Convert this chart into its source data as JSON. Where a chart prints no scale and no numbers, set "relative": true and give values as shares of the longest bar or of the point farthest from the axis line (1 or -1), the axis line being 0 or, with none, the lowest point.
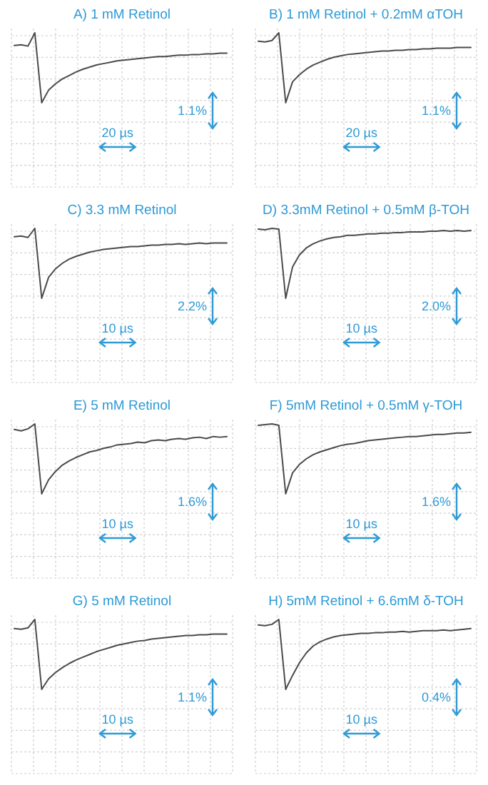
{
  "chart_data": [
    {
      "type": "line",
      "title": "A) 1 mM Retinol",
      "relative": true,
      "grid": true,
      "color": "#4a4a4a",
      "annotations": [
        "1.1%",
        "20 µs"
      ],
      "categories": [
        null,
        null,
        null,
        null,
        null,
        null,
        null,
        null,
        null,
        null,
        null,
        null,
        null,
        null,
        null,
        null,
        null,
        null,
        null,
        null,
        null,
        null,
        null,
        null,
        null,
        null,
        null,
        null,
        null,
        null,
        null,
        null
      ],
      "values": [
        0.82,
        0.83,
        0.81,
        1,
        0,
        0.18,
        0.27,
        0.34,
        0.39,
        0.44,
        0.48,
        0.51,
        0.54,
        0.56,
        0.58,
        0.6,
        0.61,
        0.62,
        0.63,
        0.64,
        0.65,
        0.66,
        0.66,
        0.67,
        0.68,
        0.68,
        0.69,
        0.69,
        0.7,
        0.7,
        0.71,
        0.71
      ]
    },
    {
      "type": "line",
      "title": "B) 1 mM Retinol + 0.2mM αTOH",
      "relative": true,
      "grid": true,
      "color": "#4a4a4a",
      "annotations": [
        "1.1%",
        "20 µs"
      ],
      "categories": [
        null,
        null,
        null,
        null,
        null,
        null,
        null,
        null,
        null,
        null,
        null,
        null,
        null,
        null,
        null,
        null,
        null,
        null,
        null,
        null,
        null,
        null,
        null,
        null,
        null,
        null,
        null,
        null,
        null,
        null,
        null,
        null
      ],
      "values": [
        0.88,
        0.87,
        0.89,
        1,
        0,
        0.3,
        0.4,
        0.48,
        0.54,
        0.58,
        0.62,
        0.65,
        0.67,
        0.69,
        0.7,
        0.71,
        0.72,
        0.73,
        0.74,
        0.74,
        0.75,
        0.75,
        0.76,
        0.76,
        0.77,
        0.77,
        0.78,
        0.78,
        0.78,
        0.79,
        0.79,
        0.79
      ]
    },
    {
      "type": "line",
      "title": "C) 3.3 mM Retinol",
      "relative": true,
      "grid": true,
      "color": "#4a4a4a",
      "annotations": [
        "2.2%",
        "10 µs"
      ],
      "categories": [
        null,
        null,
        null,
        null,
        null,
        null,
        null,
        null,
        null,
        null,
        null,
        null,
        null,
        null,
        null,
        null,
        null,
        null,
        null,
        null,
        null,
        null,
        null,
        null,
        null,
        null,
        null,
        null,
        null,
        null,
        null,
        null
      ],
      "values": [
        0.88,
        0.89,
        0.87,
        1,
        0,
        0.3,
        0.42,
        0.5,
        0.56,
        0.6,
        0.63,
        0.66,
        0.68,
        0.7,
        0.71,
        0.72,
        0.73,
        0.74,
        0.74,
        0.75,
        0.76,
        0.76,
        0.77,
        0.77,
        0.78,
        0.77,
        0.78,
        0.79,
        0.78,
        0.79,
        0.79,
        0.79
      ]
    },
    {
      "type": "line",
      "title": "D) 3.3mM Retinol + 0.5mM β-TOH",
      "relative": true,
      "grid": true,
      "color": "#4a4a4a",
      "annotations": [
        "2.0%",
        "10 µs"
      ],
      "categories": [
        null,
        null,
        null,
        null,
        null,
        null,
        null,
        null,
        null,
        null,
        null,
        null,
        null,
        null,
        null,
        null,
        null,
        null,
        null,
        null,
        null,
        null,
        null,
        null,
        null,
        null,
        null,
        null,
        null,
        null,
        null,
        null
      ],
      "values": [
        0.99,
        0.98,
        1,
        0.99,
        0,
        0.45,
        0.62,
        0.72,
        0.78,
        0.82,
        0.85,
        0.87,
        0.88,
        0.9,
        0.9,
        0.91,
        0.92,
        0.92,
        0.93,
        0.93,
        0.94,
        0.94,
        0.95,
        0.95,
        0.95,
        0.96,
        0.96,
        0.97,
        0.96,
        0.97,
        0.96,
        0.97
      ]
    },
    {
      "type": "line",
      "title": "E) 5 mM Retinol",
      "relative": true,
      "grid": true,
      "color": "#4a4a4a",
      "annotations": [
        "1.6%",
        "10 µs"
      ],
      "categories": [
        null,
        null,
        null,
        null,
        null,
        null,
        null,
        null,
        null,
        null,
        null,
        null,
        null,
        null,
        null,
        null,
        null,
        null,
        null,
        null,
        null,
        null,
        null,
        null,
        null,
        null,
        null,
        null,
        null,
        null,
        null,
        null
      ],
      "values": [
        0.92,
        0.9,
        0.93,
        1,
        0,
        0.2,
        0.32,
        0.41,
        0.47,
        0.52,
        0.56,
        0.6,
        0.62,
        0.65,
        0.67,
        0.7,
        0.71,
        0.72,
        0.74,
        0.73,
        0.76,
        0.77,
        0.76,
        0.78,
        0.79,
        0.78,
        0.8,
        0.81,
        0.79,
        0.82,
        0.81,
        0.82
      ]
    },
    {
      "type": "line",
      "title": "F) 5mM Retinol + 0.5mM γ-TOH",
      "relative": true,
      "grid": true,
      "color": "#4a4a4a",
      "annotations": [
        "1.6%",
        "10 µs"
      ],
      "categories": [
        null,
        null,
        null,
        null,
        null,
        null,
        null,
        null,
        null,
        null,
        null,
        null,
        null,
        null,
        null,
        null,
        null,
        null,
        null,
        null,
        null,
        null,
        null,
        null,
        null,
        null,
        null,
        null,
        null,
        null,
        null,
        null
      ],
      "values": [
        0.98,
        0.99,
        1,
        0.98,
        0,
        0.3,
        0.42,
        0.5,
        0.56,
        0.6,
        0.63,
        0.66,
        0.69,
        0.71,
        0.72,
        0.74,
        0.76,
        0.77,
        0.78,
        0.79,
        0.8,
        0.81,
        0.82,
        0.82,
        0.83,
        0.84,
        0.85,
        0.85,
        0.86,
        0.87,
        0.87,
        0.88
      ]
    },
    {
      "type": "line",
      "title": "G) 5 mM Retinol",
      "relative": true,
      "grid": true,
      "color": "#4a4a4a",
      "annotations": [
        "1.1%",
        "10 µs"
      ],
      "categories": [
        null,
        null,
        null,
        null,
        null,
        null,
        null,
        null,
        null,
        null,
        null,
        null,
        null,
        null,
        null,
        null,
        null,
        null,
        null,
        null,
        null,
        null,
        null,
        null,
        null,
        null,
        null,
        null,
        null,
        null,
        null,
        null
      ],
      "values": [
        0.87,
        0.86,
        0.88,
        1,
        0,
        0.15,
        0.24,
        0.31,
        0.37,
        0.42,
        0.46,
        0.5,
        0.54,
        0.57,
        0.6,
        0.63,
        0.65,
        0.67,
        0.69,
        0.7,
        0.72,
        0.73,
        0.74,
        0.75,
        0.76,
        0.77,
        0.77,
        0.78,
        0.78,
        0.79,
        0.79,
        0.79
      ]
    },
    {
      "type": "line",
      "title": "H) 5mM Retinol + 6.6mM δ-TOH",
      "relative": true,
      "grid": true,
      "color": "#4a4a4a",
      "annotations": [
        "0.4%",
        "10 µs"
      ],
      "categories": [
        null,
        null,
        null,
        null,
        null,
        null,
        null,
        null,
        null,
        null,
        null,
        null,
        null,
        null,
        null,
        null,
        null,
        null,
        null,
        null,
        null,
        null,
        null,
        null,
        null,
        null,
        null,
        null,
        null,
        null,
        null,
        null
      ],
      "values": [
        0.92,
        0.91,
        0.93,
        1,
        0,
        0.2,
        0.38,
        0.52,
        0.62,
        0.68,
        0.72,
        0.75,
        0.77,
        0.78,
        0.79,
        0.8,
        0.8,
        0.81,
        0.81,
        0.82,
        0.82,
        0.83,
        0.82,
        0.83,
        0.84,
        0.84,
        0.84,
        0.85,
        0.84,
        0.85,
        0.86,
        0.87
      ]
    }
  ]
}
